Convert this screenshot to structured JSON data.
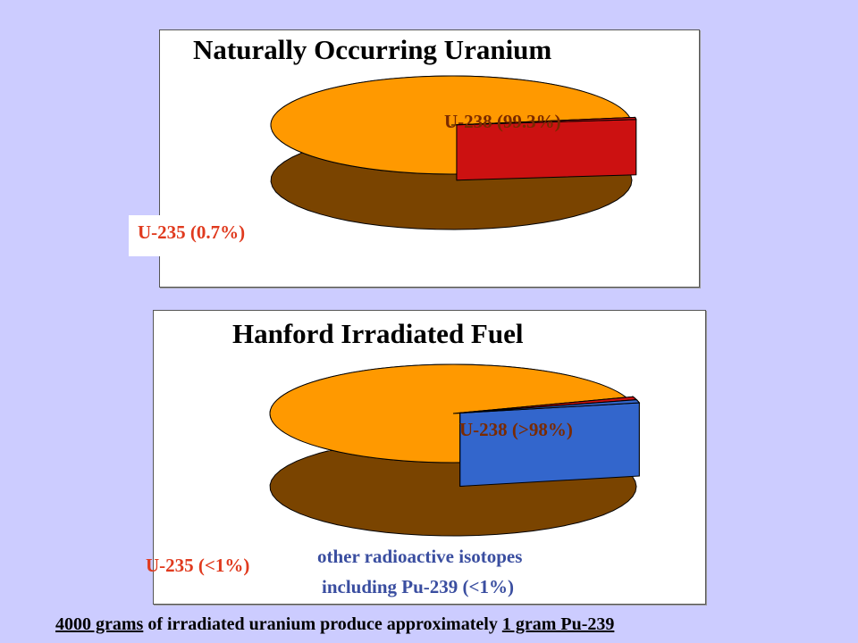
{
  "chart_data": [
    {
      "type": "pie",
      "title": "Naturally Occurring Uranium",
      "slices": [
        {
          "label": "U-238",
          "value": 99.3,
          "display": "U-238  (99.3%)",
          "color": "#ff9900",
          "side_color": "#7a4400"
        },
        {
          "label": "U-235",
          "value": 0.7,
          "display": "U-235  (0.7%)",
          "color": "#cc1111",
          "side_color": "#8b0000"
        }
      ]
    },
    {
      "type": "pie",
      "title": "Hanford Irradiated Fuel",
      "slices": [
        {
          "label": "U-238",
          "value": 98,
          "display": "U-238 (>98%)",
          "color": "#ff9900",
          "side_color": "#7a4400"
        },
        {
          "label": "U-235",
          "value": 1,
          "display": "U-235 (<1%)",
          "color": "#cc1111",
          "side_color": "#8b0000"
        },
        {
          "label": "other radioactive isotopes including Pu-239",
          "value": 1,
          "display_line1": "other radioactive isotopes",
          "display_line2": "including Pu-239 (<1%)",
          "color": "#3366cc",
          "side_color": "#002a66"
        }
      ]
    }
  ],
  "footer": {
    "part1": "4000 grams",
    "part2": " of irradiated uranium produce approximately ",
    "part3": "1 gram Pu-239"
  }
}
